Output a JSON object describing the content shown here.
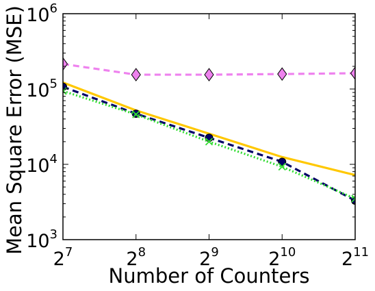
{
  "chart_data": {
    "type": "line",
    "title": "",
    "xlabel": "Number of Counters",
    "ylabel": "Mean Square Error (MSE)",
    "x_scale": "log2",
    "y_scale": "log10",
    "xlim": [
      128,
      2048
    ],
    "ylim": [
      1000,
      1000000
    ],
    "grid": false,
    "legend": "none",
    "x_ticks": [
      {
        "value": 128,
        "base": "2",
        "exp": "7"
      },
      {
        "value": 256,
        "base": "2",
        "exp": "8"
      },
      {
        "value": 512,
        "base": "2",
        "exp": "9"
      },
      {
        "value": 1024,
        "base": "2",
        "exp": "10"
      },
      {
        "value": 2048,
        "base": "2",
        "exp": "11"
      }
    ],
    "y_ticks": [
      {
        "value": 1000,
        "base": "10",
        "exp": "3"
      },
      {
        "value": 10000,
        "base": "10",
        "exp": "4"
      },
      {
        "value": 100000,
        "base": "10",
        "exp": "5"
      },
      {
        "value": 1000000,
        "base": "10",
        "exp": "6"
      }
    ],
    "series": [
      {
        "color": "#ee82ee",
        "line_style": "dashed",
        "marker": "diamond",
        "x": [
          128,
          256,
          512,
          1024,
          2048
        ],
        "y": [
          215000,
          155000,
          155000,
          158000,
          162000
        ]
      },
      {
        "color": "#ffc800",
        "line_style": "solid",
        "marker": "none",
        "x": [
          128,
          256,
          512,
          1024,
          2048
        ],
        "y": [
          122000,
          52000,
          25500,
          12500,
          7200
        ]
      },
      {
        "color": "#000066",
        "line_style": "dashed",
        "marker": "circle",
        "x": [
          128,
          256,
          512,
          1024,
          2048
        ],
        "y": [
          107000,
          47000,
          22500,
          10800,
          3300
        ]
      },
      {
        "color": "#32dc32",
        "line_style": "dotted",
        "marker": "x",
        "x": [
          128,
          256,
          512,
          1024,
          2048
        ],
        "y": [
          94000,
          46000,
          20000,
          9300,
          3500
        ]
      }
    ]
  }
}
